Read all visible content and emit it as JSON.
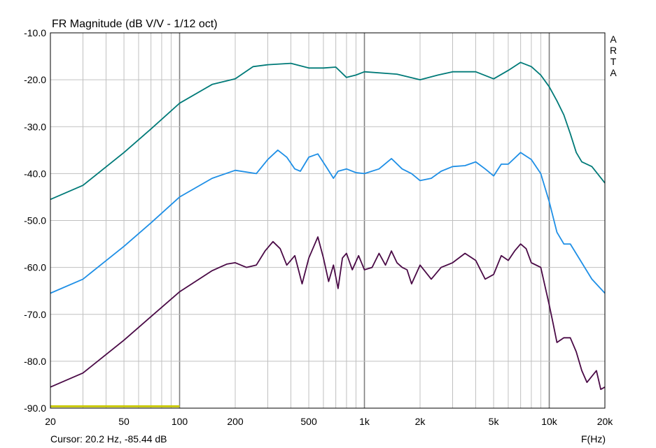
{
  "chart_data": {
    "type": "line",
    "title": "FR Magnitude (dB V/V - 1/12 oct)",
    "xlabel": "F(Hz)",
    "ylabel": "",
    "x_scale": "log",
    "xlim": [
      20,
      20000
    ],
    "ylim": [
      -90,
      -10
    ],
    "x_ticks": [
      {
        "value": 20,
        "label": "20"
      },
      {
        "value": 50,
        "label": "50"
      },
      {
        "value": 100,
        "label": "100"
      },
      {
        "value": 200,
        "label": "200"
      },
      {
        "value": 500,
        "label": "500"
      },
      {
        "value": 1000,
        "label": "1k"
      },
      {
        "value": 2000,
        "label": "2k"
      },
      {
        "value": 5000,
        "label": "5k"
      },
      {
        "value": 10000,
        "label": "10k"
      },
      {
        "value": 20000,
        "label": "20k"
      }
    ],
    "y_ticks": [
      {
        "value": -10,
        "label": "-10.0"
      },
      {
        "value": -20,
        "label": "-20.0"
      },
      {
        "value": -30,
        "label": "-30.0"
      },
      {
        "value": -40,
        "label": "-40.0"
      },
      {
        "value": -50,
        "label": "-50.0"
      },
      {
        "value": -60,
        "label": "-60.0"
      },
      {
        "value": -70,
        "label": "-70.0"
      },
      {
        "value": -80,
        "label": "-80.0"
      },
      {
        "value": -90,
        "label": "-90.0"
      }
    ],
    "grid": true,
    "side_label": [
      "A",
      "R",
      "T",
      "A"
    ],
    "series": [
      {
        "color": "#007a78",
        "points": [
          [
            20,
            -45.5
          ],
          [
            30,
            -42.5
          ],
          [
            50,
            -35.5
          ],
          [
            70,
            -30.5
          ],
          [
            100,
            -25
          ],
          [
            150,
            -21
          ],
          [
            200,
            -19.8
          ],
          [
            250,
            -17.2
          ],
          [
            300,
            -16.8
          ],
          [
            400,
            -16.5
          ],
          [
            500,
            -17.5
          ],
          [
            600,
            -17.5
          ],
          [
            700,
            -17.3
          ],
          [
            800,
            -19.5
          ],
          [
            900,
            -19.0
          ],
          [
            1000,
            -18.3
          ],
          [
            1500,
            -18.8
          ],
          [
            2000,
            -20.0
          ],
          [
            2500,
            -19.0
          ],
          [
            3000,
            -18.3
          ],
          [
            4000,
            -18.3
          ],
          [
            5000,
            -19.8
          ],
          [
            6000,
            -18.0
          ],
          [
            7000,
            -16.3
          ],
          [
            8000,
            -17.2
          ],
          [
            9000,
            -19.0
          ],
          [
            10000,
            -21.5
          ],
          [
            11000,
            -24.5
          ],
          [
            12000,
            -27.5
          ],
          [
            13000,
            -31.5
          ],
          [
            14000,
            -35.5
          ],
          [
            15000,
            -37.5
          ],
          [
            17000,
            -38.5
          ],
          [
            20000,
            -42.0
          ]
        ]
      },
      {
        "color": "#1e8fe6",
        "points": [
          [
            20,
            -65.5
          ],
          [
            30,
            -62.5
          ],
          [
            50,
            -55.5
          ],
          [
            70,
            -50.5
          ],
          [
            100,
            -45
          ],
          [
            150,
            -41
          ],
          [
            200,
            -39.3
          ],
          [
            260,
            -40.0
          ],
          [
            300,
            -37.0
          ],
          [
            340,
            -35.0
          ],
          [
            380,
            -36.5
          ],
          [
            420,
            -39.0
          ],
          [
            450,
            -39.5
          ],
          [
            500,
            -36.5
          ],
          [
            560,
            -35.8
          ],
          [
            620,
            -38.5
          ],
          [
            680,
            -41.0
          ],
          [
            720,
            -39.5
          ],
          [
            800,
            -39.0
          ],
          [
            900,
            -39.8
          ],
          [
            1000,
            -40.0
          ],
          [
            1200,
            -39.0
          ],
          [
            1400,
            -36.8
          ],
          [
            1600,
            -39.0
          ],
          [
            1800,
            -40.0
          ],
          [
            2000,
            -41.5
          ],
          [
            2300,
            -41.0
          ],
          [
            2600,
            -39.5
          ],
          [
            3000,
            -38.5
          ],
          [
            3500,
            -38.3
          ],
          [
            4000,
            -37.5
          ],
          [
            4500,
            -39.0
          ],
          [
            5000,
            -40.5
          ],
          [
            5500,
            -38.0
          ],
          [
            6000,
            -38.0
          ],
          [
            7000,
            -35.5
          ],
          [
            8000,
            -37.0
          ],
          [
            9000,
            -40.0
          ],
          [
            10000,
            -46.0
          ],
          [
            11000,
            -52.5
          ],
          [
            12000,
            -55.0
          ],
          [
            13000,
            -55.0
          ],
          [
            15000,
            -59.0
          ],
          [
            17000,
            -62.5
          ],
          [
            20000,
            -65.5
          ]
        ]
      },
      {
        "color": "#4a0a46",
        "points": [
          [
            20,
            -85.5
          ],
          [
            30,
            -82.5
          ],
          [
            50,
            -75.5
          ],
          [
            70,
            -70.5
          ],
          [
            100,
            -65.2
          ],
          [
            150,
            -60.7
          ],
          [
            180,
            -59.3
          ],
          [
            200,
            -59.0
          ],
          [
            230,
            -60.0
          ],
          [
            260,
            -59.5
          ],
          [
            290,
            -56.5
          ],
          [
            320,
            -54.5
          ],
          [
            350,
            -56.0
          ],
          [
            380,
            -59.5
          ],
          [
            420,
            -57.5
          ],
          [
            460,
            -63.5
          ],
          [
            500,
            -58.0
          ],
          [
            560,
            -53.5
          ],
          [
            600,
            -58.0
          ],
          [
            640,
            -63.0
          ],
          [
            680,
            -59.5
          ],
          [
            720,
            -64.5
          ],
          [
            760,
            -58.0
          ],
          [
            800,
            -57.0
          ],
          [
            860,
            -60.5
          ],
          [
            930,
            -57.5
          ],
          [
            1000,
            -60.5
          ],
          [
            1100,
            -60.0
          ],
          [
            1200,
            -57.0
          ],
          [
            1300,
            -59.5
          ],
          [
            1400,
            -56.5
          ],
          [
            1500,
            -59.0
          ],
          [
            1600,
            -60.0
          ],
          [
            1700,
            -60.5
          ],
          [
            1800,
            -63.5
          ],
          [
            2000,
            -59.5
          ],
          [
            2300,
            -62.5
          ],
          [
            2600,
            -60.0
          ],
          [
            3000,
            -59.0
          ],
          [
            3500,
            -57.0
          ],
          [
            4000,
            -58.5
          ],
          [
            4500,
            -62.5
          ],
          [
            5000,
            -61.5
          ],
          [
            5500,
            -57.5
          ],
          [
            6000,
            -58.5
          ],
          [
            6500,
            -56.5
          ],
          [
            7000,
            -55.0
          ],
          [
            7500,
            -56.0
          ],
          [
            8000,
            -59.0
          ],
          [
            9000,
            -60.0
          ],
          [
            10000,
            -68.0
          ],
          [
            10500,
            -72.0
          ],
          [
            11000,
            -76.0
          ],
          [
            12000,
            -75.0
          ],
          [
            13000,
            -75.0
          ],
          [
            14000,
            -78.0
          ],
          [
            15000,
            -82.0
          ],
          [
            16000,
            -84.5
          ],
          [
            18000,
            -82.0
          ],
          [
            19000,
            -86.0
          ],
          [
            20000,
            -85.5
          ]
        ]
      }
    ],
    "marker": {
      "color": "#c8c800",
      "x_range": [
        20,
        100
      ],
      "y": -89.6
    }
  },
  "cursor": {
    "text": "Cursor: 20.2 Hz, -85.44 dB"
  }
}
